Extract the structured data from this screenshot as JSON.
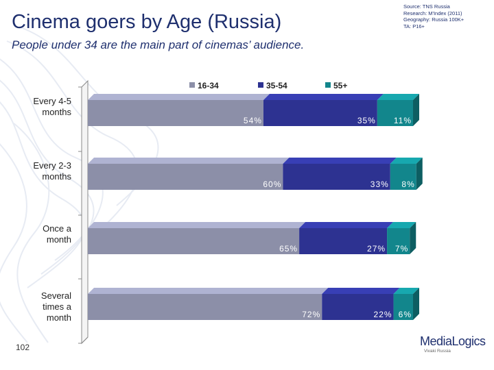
{
  "slide": {
    "title": "Cinema goers by Age (Russia)",
    "subtitle": "People under 34 are the main part of cinemas’ audience.",
    "source_lines": [
      "Source: TNS Russia",
      "Research: M'Index (2011)",
      "Geography: Russia 100K+",
      "TA: P16+"
    ],
    "page_number": "102",
    "logo_text": "MediaLogics",
    "logo_tagline": "Vivaki Russia"
  },
  "chart_data": {
    "type": "bar",
    "orientation": "horizontal",
    "stacked": true,
    "percent": true,
    "categories": [
      "Every 4-5 months",
      "Every 2-3 months",
      "Once a month",
      "Several times a month"
    ],
    "series": [
      {
        "name": "16-34",
        "color": "#8c8fa8",
        "values": [
          54,
          60,
          65,
          72
        ]
      },
      {
        "name": "35-54",
        "color": "#2d3291",
        "values": [
          35,
          33,
          27,
          22
        ]
      },
      {
        "name": "55+",
        "color": "#12868c",
        "values": [
          11,
          8,
          7,
          6
        ]
      }
    ],
    "value_labels": [
      [
        "54%",
        "60%",
        "65%",
        "72%"
      ],
      [
        "35%",
        "33%",
        "27%",
        "22%"
      ],
      [
        "11%",
        "8%",
        "7%",
        "6%"
      ]
    ],
    "xlim": [
      0,
      100
    ],
    "legend": {
      "placement": "top"
    },
    "grid": false,
    "colors": {
      "title": "#1e2f6e",
      "label": "#222222",
      "axis": "#888888"
    }
  }
}
